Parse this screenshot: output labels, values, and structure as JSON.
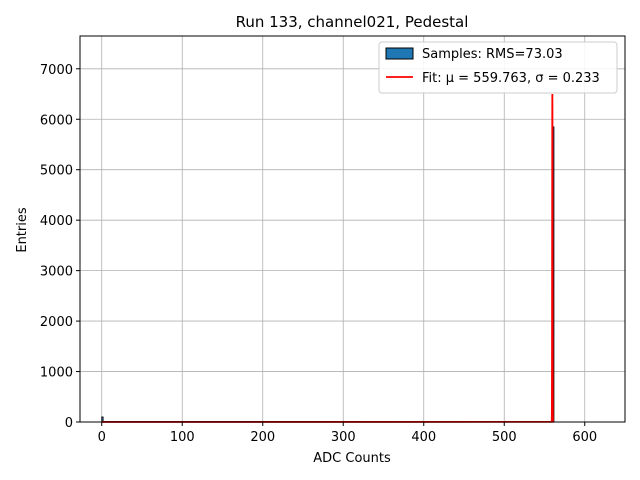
{
  "chart_data": {
    "type": "bar",
    "title": "Run 133, channel021, Pedestal",
    "xlabel": "ADC Counts",
    "ylabel": "Entries",
    "xlim": [
      -27,
      650
    ],
    "ylim": [
      0,
      7650
    ],
    "xticks": [
      0,
      100,
      200,
      300,
      400,
      500,
      600
    ],
    "yticks": [
      0,
      1000,
      2000,
      3000,
      4000,
      5000,
      6000,
      7000
    ],
    "grid": true,
    "legend_position": "top-right",
    "histogram": {
      "name": "Samples: RMS=73.03",
      "color": "#1f77b4",
      "bins": [
        {
          "x0": 0,
          "x1": 1,
          "count": 100
        },
        {
          "x0": 559,
          "x1": 560,
          "count": 1
        },
        {
          "x0": 560,
          "x1": 561,
          "count": 5850
        }
      ]
    },
    "fit": {
      "name": "Fit: μ = 559.763, σ = 0.233",
      "color": "#ff0000",
      "mu": 559.763,
      "sigma": 0.233,
      "peak": 6500
    }
  }
}
